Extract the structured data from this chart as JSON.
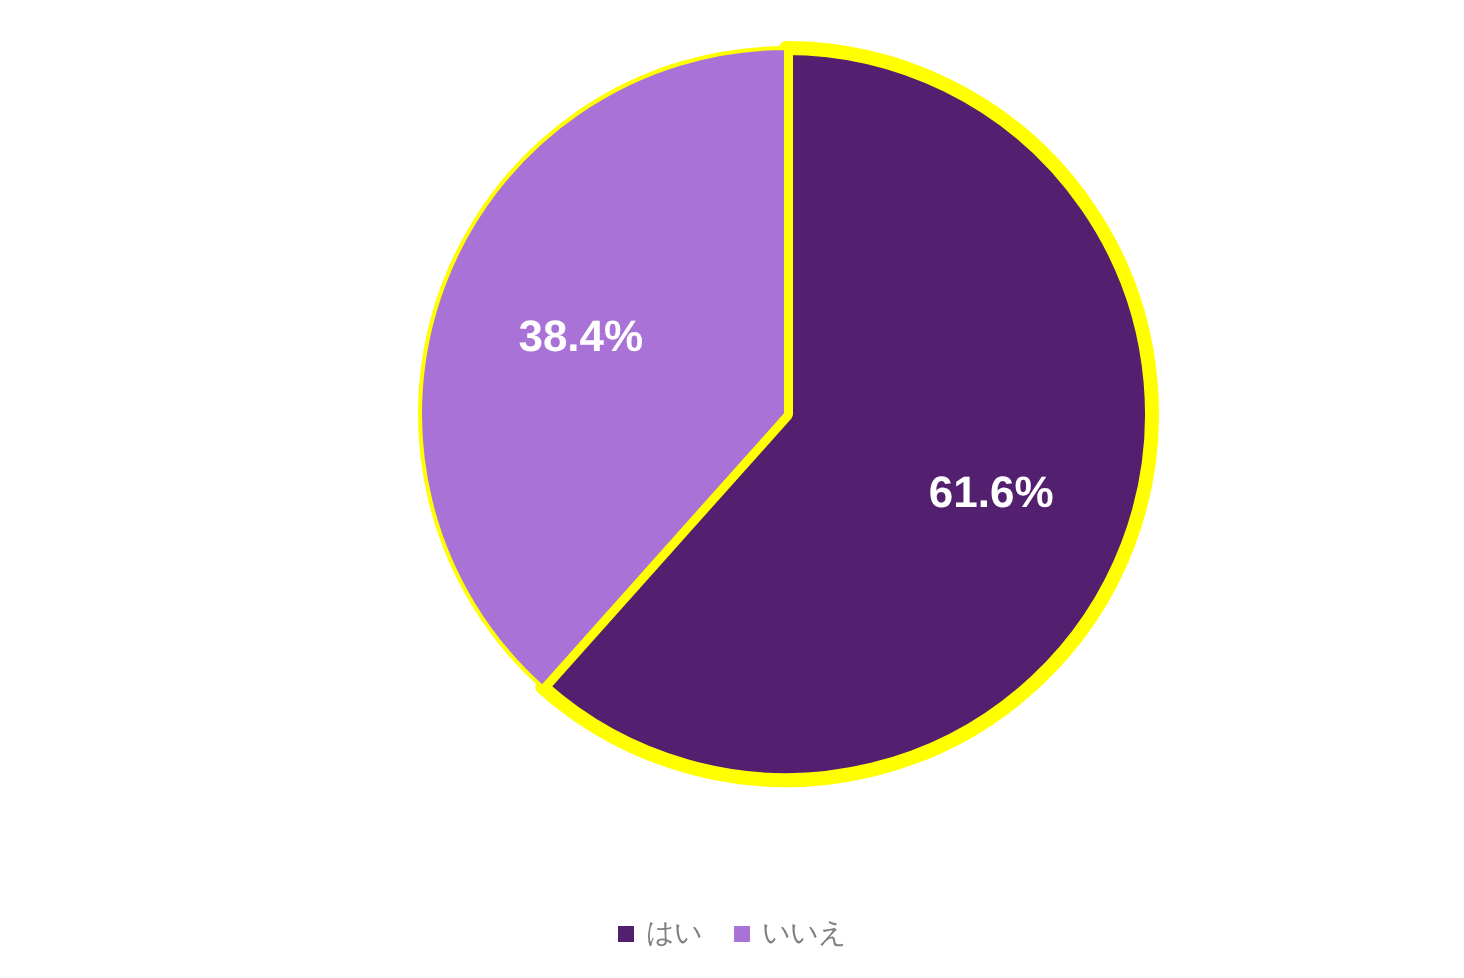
{
  "chart_data": {
    "type": "pie",
    "categories": [
      "はい",
      "いいえ"
    ],
    "values": [
      61.6,
      38.4
    ],
    "colors": [
      "#52206f",
      "#a872d6"
    ],
    "value_labels": [
      "61.6%",
      "38.4%"
    ],
    "legend": "bottom"
  }
}
